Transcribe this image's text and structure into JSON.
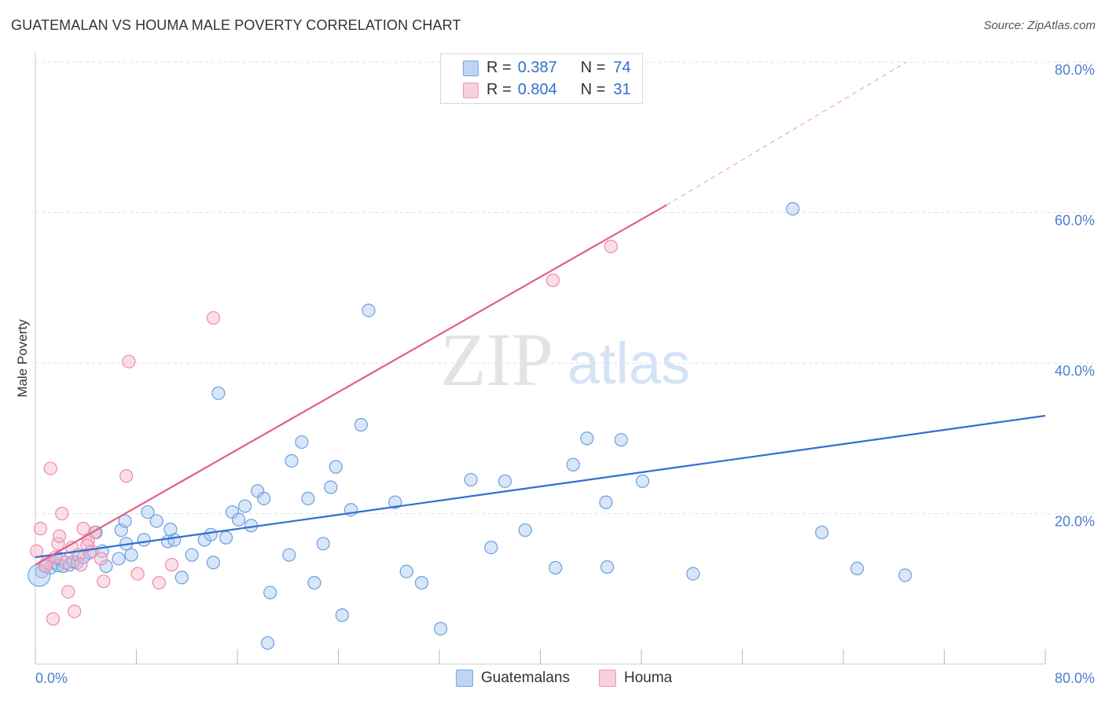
{
  "header": {
    "title": "GUATEMALAN VS HOUMA MALE POVERTY CORRELATION CHART",
    "source": "Source: ZipAtlas.com"
  },
  "legend": {
    "rows": [
      {
        "r_label": "R =",
        "r_value": "0.387",
        "n_label": "N =",
        "n_value": "74",
        "color": "#a8c8f0"
      },
      {
        "r_label": "R =",
        "r_value": "0.804",
        "n_label": "N =",
        "n_value": "31",
        "color": "#f5b8cb"
      }
    ]
  },
  "bottom_legend": [
    {
      "label": "Guatemalans",
      "color": "#a8c8f0"
    },
    {
      "label": "Houma",
      "color": "#f5b8cb"
    }
  ],
  "watermark": {
    "zip": "ZIP",
    "atlas": "atlas"
  },
  "chart_data": {
    "type": "scatter",
    "ylabel": "Male Poverty",
    "xlim": [
      0,
      80
    ],
    "ylim": [
      0,
      80
    ],
    "x_tick_labels": [
      "0.0%",
      "80.0%"
    ],
    "y_tick_labels": [
      "20.0%",
      "40.0%",
      "60.0%",
      "80.0%"
    ],
    "y_ticks": [
      20,
      40,
      60,
      80
    ],
    "grid": true,
    "series": [
      {
        "name": "Guatemalans",
        "color": "#6b9fe0",
        "line_color": "#2f6fcf",
        "trend": {
          "x0": 0,
          "y0": 14.2,
          "x1": 80,
          "y1": 33.0
        },
        "points": [
          [
            0.5,
            12.3
          ],
          [
            0.8,
            13.0
          ],
          [
            1.2,
            12.8
          ],
          [
            1.5,
            13.5
          ],
          [
            1.8,
            13.1
          ],
          [
            2.2,
            13.0
          ],
          [
            2.7,
            13.2
          ],
          [
            3.3,
            13.5
          ],
          [
            3.8,
            14.2
          ],
          [
            4.3,
            14.8
          ],
          [
            5.3,
            15.0
          ],
          [
            5.6,
            13.0
          ],
          [
            6.6,
            14.0
          ],
          [
            6.8,
            17.8
          ],
          [
            7.2,
            16.0
          ],
          [
            7.6,
            14.5
          ],
          [
            8.6,
            16.5
          ],
          [
            8.9,
            20.2
          ],
          [
            10.5,
            16.3
          ],
          [
            11.0,
            16.5
          ],
          [
            11.6,
            11.5
          ],
          [
            12.4,
            14.5
          ],
          [
            13.4,
            16.5
          ],
          [
            13.9,
            17.2
          ],
          [
            14.1,
            13.5
          ],
          [
            14.5,
            36.0
          ],
          [
            15.6,
            20.2
          ],
          [
            16.1,
            19.2
          ],
          [
            16.6,
            21.0
          ],
          [
            17.1,
            18.4
          ],
          [
            17.6,
            23.0
          ],
          [
            18.1,
            22.0
          ],
          [
            18.6,
            9.5
          ],
          [
            18.4,
            2.8
          ],
          [
            20.1,
            14.5
          ],
          [
            20.3,
            27.0
          ],
          [
            21.1,
            29.5
          ],
          [
            21.6,
            22.0
          ],
          [
            22.1,
            10.8
          ],
          [
            22.8,
            16.0
          ],
          [
            23.4,
            23.5
          ],
          [
            23.8,
            26.2
          ],
          [
            24.3,
            6.5
          ],
          [
            25.0,
            20.5
          ],
          [
            25.8,
            31.8
          ],
          [
            26.4,
            47.0
          ],
          [
            28.5,
            21.5
          ],
          [
            30.6,
            10.8
          ],
          [
            32.1,
            4.7
          ],
          [
            34.5,
            24.5
          ],
          [
            36.1,
            15.5
          ],
          [
            37.2,
            24.3
          ],
          [
            38.8,
            17.8
          ],
          [
            41.2,
            12.8
          ],
          [
            42.6,
            26.5
          ],
          [
            43.7,
            30.0
          ],
          [
            45.2,
            21.5
          ],
          [
            45.3,
            12.9
          ],
          [
            46.4,
            29.8
          ],
          [
            48.1,
            24.3
          ],
          [
            52.1,
            12.0
          ],
          [
            60.0,
            60.5
          ],
          [
            62.3,
            17.5
          ],
          [
            65.1,
            12.7
          ],
          [
            68.9,
            11.8
          ],
          [
            0.3,
            11.8
          ],
          [
            2.0,
            14.0
          ],
          [
            9.6,
            19.0
          ],
          [
            7.1,
            19.0
          ],
          [
            3.0,
            13.6
          ],
          [
            4.8,
            17.5
          ],
          [
            10.7,
            17.9
          ],
          [
            15.1,
            16.8
          ],
          [
            29.4,
            12.3
          ]
        ]
      },
      {
        "name": "Houma",
        "color": "#f08aaa",
        "line_color": "#e0608a",
        "trend": {
          "x0": 0,
          "y0": 13.2,
          "x1": 50,
          "y1": 61.0
        },
        "trend_dashed_to": {
          "x": 69,
          "y": 80
        },
        "points": [
          [
            0.1,
            15.0
          ],
          [
            0.4,
            18.0
          ],
          [
            0.9,
            13.5
          ],
          [
            1.2,
            26.0
          ],
          [
            1.4,
            6.0
          ],
          [
            1.8,
            16.0
          ],
          [
            1.9,
            17.0
          ],
          [
            2.1,
            20.0
          ],
          [
            2.4,
            13.5
          ],
          [
            2.6,
            9.6
          ],
          [
            2.9,
            15.5
          ],
          [
            3.1,
            7.0
          ],
          [
            3.4,
            14.5
          ],
          [
            3.6,
            13.2
          ],
          [
            3.8,
            18.0
          ],
          [
            4.2,
            16.5
          ],
          [
            4.5,
            15.0
          ],
          [
            4.7,
            17.5
          ],
          [
            5.2,
            14.0
          ],
          [
            5.4,
            11.0
          ],
          [
            7.2,
            25.0
          ],
          [
            7.4,
            40.2
          ],
          [
            8.1,
            12.0
          ],
          [
            9.8,
            10.8
          ],
          [
            10.8,
            13.2
          ],
          [
            14.1,
            46.0
          ],
          [
            41.0,
            51.0
          ],
          [
            45.6,
            55.5
          ],
          [
            1.6,
            14.2
          ],
          [
            0.8,
            13.0
          ],
          [
            4.1,
            15.8
          ]
        ]
      }
    ]
  }
}
